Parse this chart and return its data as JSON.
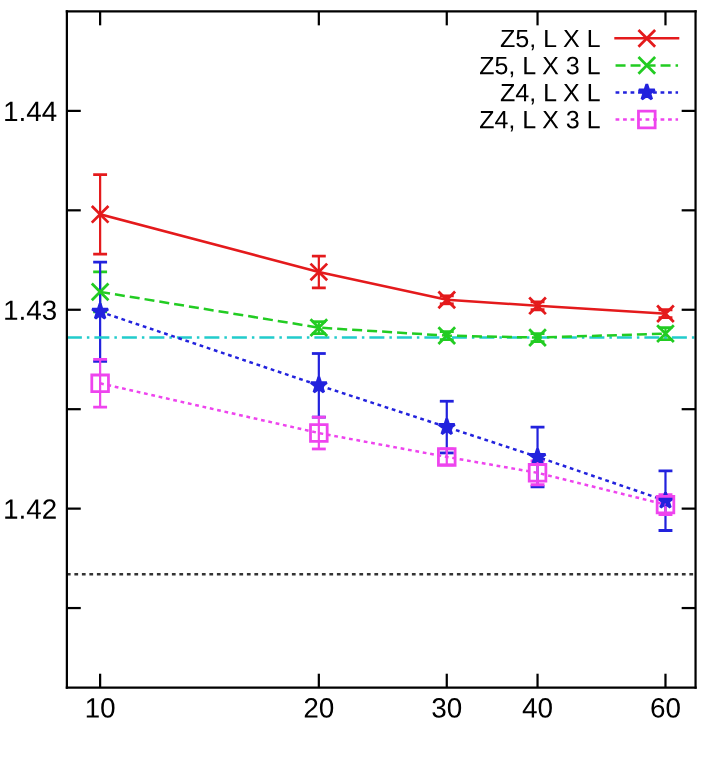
{
  "chart_data": {
    "type": "line",
    "log": "x",
    "xlim": [
      9,
      66
    ],
    "xticks": [
      10,
      20,
      30,
      40,
      60
    ],
    "ylim": [
      1.411,
      1.445
    ],
    "yticks": [
      {
        "value": 1.415,
        "label": null
      },
      {
        "value": 1.42,
        "label": "1.42"
      },
      {
        "value": 1.425,
        "label": null
      },
      {
        "value": 1.43,
        "label": "1.43"
      },
      {
        "value": 1.435,
        "label": null
      },
      {
        "value": 1.44,
        "label": "1.44"
      }
    ],
    "x": [
      10,
      20,
      30,
      40,
      60
    ],
    "grid": false,
    "legend": "top right",
    "series": [
      {
        "name": "Z5, L X L",
        "color": "#e41a1c",
        "marker": "cross",
        "line_style": "solid",
        "values": [
          1.4348,
          1.4319,
          1.4305,
          1.4302,
          1.4298
        ],
        "errors": [
          0.002,
          0.0008,
          0.0002,
          0.0002,
          0.0002
        ]
      },
      {
        "name": "Z5, L X 3 L",
        "color": "#22cc22",
        "marker": "cross",
        "line_style": "dashed",
        "values": [
          1.4309,
          1.4291,
          1.4287,
          1.4286,
          1.4288
        ],
        "errors": [
          0.001,
          0.0003,
          0.0002,
          0.0002,
          0.0003
        ]
      },
      {
        "name": "Z4, L X L",
        "color": "#2222dd",
        "marker": "star",
        "line_style": "dotted",
        "values": [
          1.4299,
          1.4262,
          1.4241,
          1.4226,
          1.4204
        ],
        "errors": [
          0.0025,
          0.0016,
          0.0013,
          0.0015,
          0.0015
        ]
      },
      {
        "name": "Z4, L X 3 L",
        "color": "#ee44ee",
        "marker": "square",
        "line_style": "dotted",
        "values": [
          1.4263,
          1.4238,
          1.4226,
          1.4218,
          1.4202
        ],
        "errors": [
          0.0012,
          0.0008,
          0.0004,
          0.0006,
          0.0005
        ]
      }
    ],
    "ref_lines": [
      {
        "axis": "y",
        "value": 1.4286,
        "color": "#22cccc",
        "line_style": "dashdot"
      },
      {
        "axis": "y",
        "value": 1.4167,
        "color": "#333333",
        "line_style": "dotted"
      }
    ]
  }
}
